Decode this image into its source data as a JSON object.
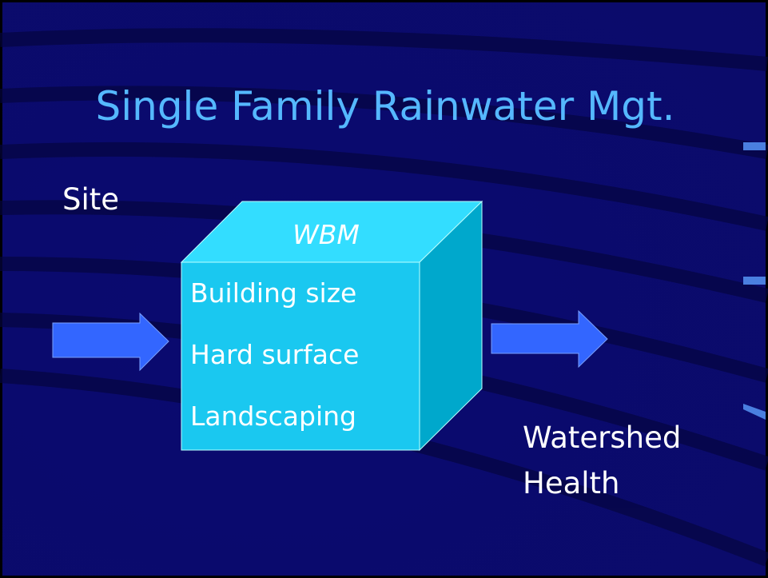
{
  "title": "Single Family Rainwater Mgt.",
  "input_label": "Site",
  "box": {
    "title": "WBM",
    "items": [
      "Building size",
      "Hard surface",
      "Landscaping"
    ]
  },
  "output_label": [
    "Watershed",
    "Health"
  ]
}
